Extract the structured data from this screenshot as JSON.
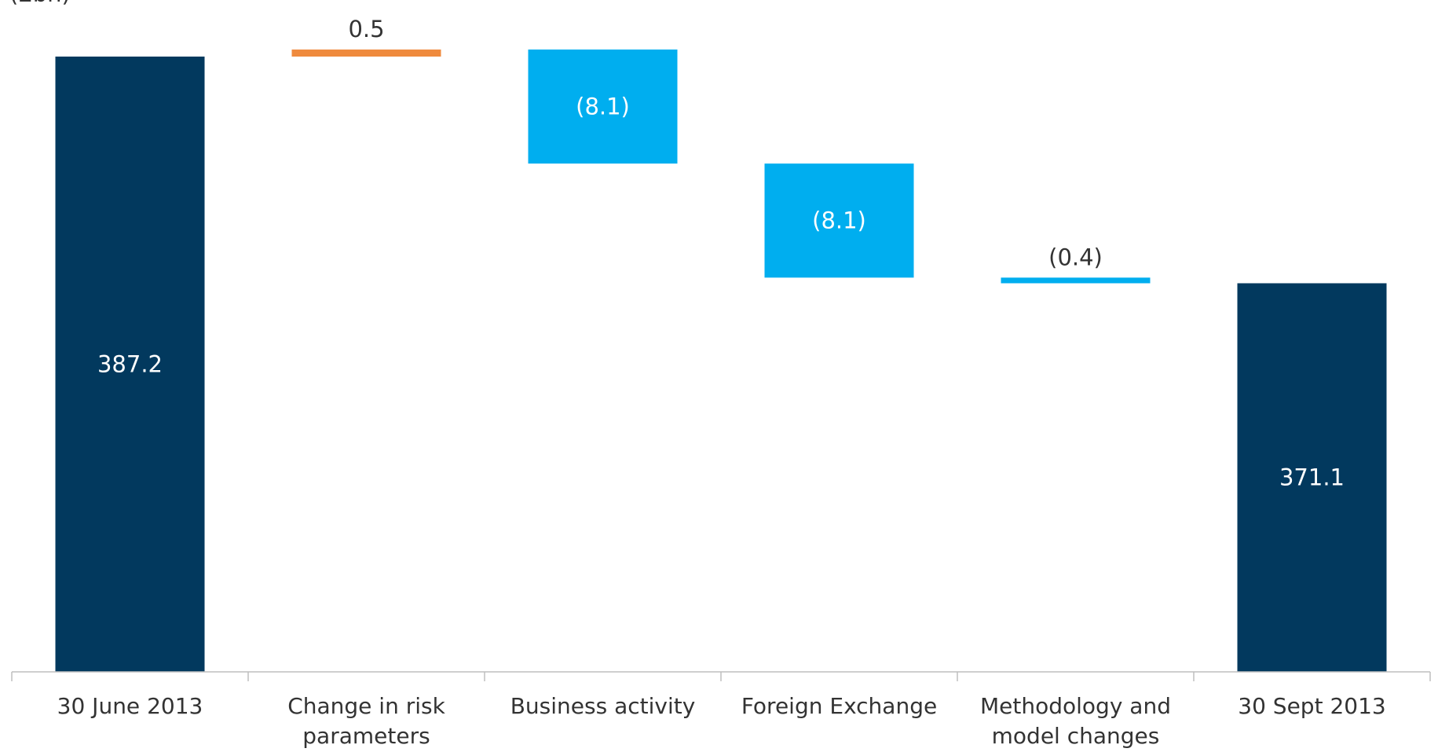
{
  "chart_data": {
    "type": "bar",
    "subtype": "waterfall",
    "title": "",
    "ylabel": "(£bn)",
    "xlabel": "",
    "categories": [
      [
        "30 June 2013"
      ],
      [
        "Change in risk",
        "parameters"
      ],
      [
        "Business activity"
      ],
      [
        "Foreign Exchange"
      ],
      [
        "Methodology and",
        "model changes"
      ],
      [
        "30 Sept 2013"
      ]
    ],
    "kinds": [
      "total",
      "delta",
      "delta",
      "delta",
      "delta",
      "total"
    ],
    "values": [
      387.2,
      0.5,
      -8.1,
      -8.1,
      -0.4,
      371.1
    ],
    "data_labels": [
      "387.2",
      "0.5",
      "(8.1)",
      "(8.1)",
      "(0.4)",
      "371.1"
    ],
    "label_inside": [
      true,
      false,
      true,
      true,
      false,
      true
    ],
    "visual_floor": 343.5,
    "ylim": [
      343.5,
      388.0
    ],
    "grid": false,
    "legend": "none",
    "colors": {
      "total": "#02395e",
      "increase": "#ef8a3d",
      "decrease": "#00aeef",
      "label_on_bar": "#ffffff",
      "label_outside": "#333333",
      "axis": "#bfbfbf"
    }
  }
}
